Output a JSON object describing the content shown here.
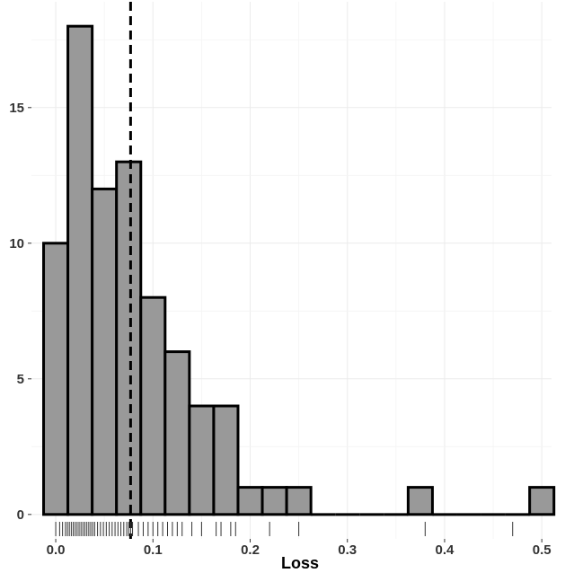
{
  "chart_data": {
    "type": "histogram",
    "title": "",
    "xlabel": "Loss",
    "ylabel": "",
    "xlim": [
      -0.025,
      0.51
    ],
    "ylim": [
      -0.9,
      18.9
    ],
    "x_ticks": [
      0.0,
      0.1,
      0.2,
      0.3,
      0.4,
      0.5
    ],
    "x_tick_labels": [
      "0.0",
      "0.1",
      "0.2",
      "0.3",
      "0.4",
      "0.5"
    ],
    "y_ticks": [
      0,
      5,
      10,
      15
    ],
    "y_tick_labels": [
      "0",
      "5",
      "10",
      "15"
    ],
    "bin_width": 0.025,
    "bin_start": -0.0125,
    "counts": [
      10,
      18,
      12,
      13,
      8,
      6,
      4,
      4,
      1,
      1,
      1,
      0,
      0,
      0,
      0,
      1,
      0,
      0,
      0,
      0,
      1
    ],
    "vline": {
      "x": 0.077,
      "style": "dashed"
    },
    "rug": [
      0.0,
      0.004,
      0.007,
      0.01,
      0.012,
      0.014,
      0.016,
      0.018,
      0.02,
      0.022,
      0.024,
      0.026,
      0.028,
      0.03,
      0.032,
      0.034,
      0.036,
      0.038,
      0.04,
      0.043,
      0.046,
      0.049,
      0.052,
      0.055,
      0.058,
      0.061,
      0.064,
      0.067,
      0.07,
      0.073,
      0.075,
      0.077,
      0.079,
      0.085,
      0.09,
      0.095,
      0.1,
      0.105,
      0.11,
      0.115,
      0.12,
      0.125,
      0.13,
      0.14,
      0.15,
      0.165,
      0.17,
      0.18,
      0.185,
      0.22,
      0.25,
      0.38,
      0.47
    ],
    "bar_color": "#999999",
    "bar_edge": "#000000",
    "grid": true
  }
}
